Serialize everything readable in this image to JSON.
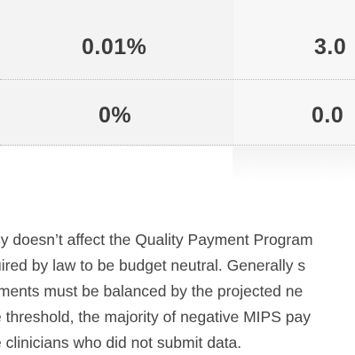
{
  "table": {
    "rows": [
      {
        "col_a": "0.01%",
        "col_b": "3.0"
      },
      {
        "col_a": "0%",
        "col_b": "0.0"
      }
    ]
  },
  "paragraph": {
    "lines": [
      "cy doesn’t affect the Quality Payment Program",
      "uired by law to be budget neutral. Generally s",
      "tments must be balanced by the projected ne",
      "e threshold, the majority of negative MIPS pay",
      "e clinicians who did not submit data."
    ]
  }
}
